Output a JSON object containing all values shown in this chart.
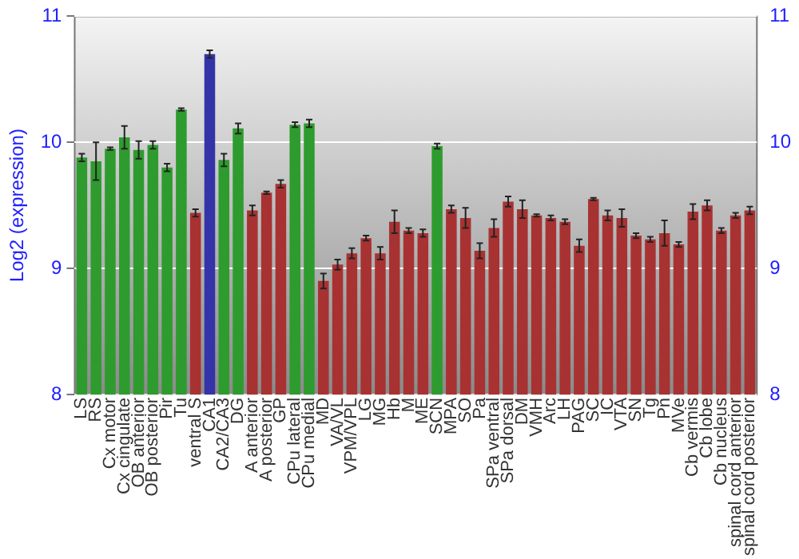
{
  "chart_data": {
    "type": "bar",
    "ylabel": "Log2 (expression)",
    "categories": [
      "LS",
      "RS",
      "Cx motor",
      "Cx cingulate",
      "OB anterior",
      "OB posterior",
      "Pir",
      "Tu",
      "ventral S",
      "CA1",
      "CA2/CA3",
      "DG",
      "A anterior",
      "A posterior",
      "GP",
      "CPu lateral",
      "CPu medial",
      "MD",
      "VA/VL",
      "VPM/VPL",
      "LG",
      "MG",
      "Hb",
      "M",
      "ME",
      "SCN",
      "MPA",
      "SO",
      "Pa",
      "SPa ventral",
      "SPa dorsal",
      "DM",
      "VMH",
      "Arc",
      "LH",
      "PAG",
      "SC",
      "IC",
      "VTA",
      "SN",
      "Tg",
      "Pn",
      "MVe",
      "Cb vermis",
      "Cb lobe",
      "Cb nucleus",
      "spinal cord anterior",
      "spinal cord posterior"
    ],
    "values": [
      9.88,
      9.85,
      9.95,
      10.04,
      9.94,
      9.98,
      9.8,
      10.26,
      9.44,
      10.7,
      9.86,
      10.11,
      9.46,
      9.6,
      9.67,
      10.14,
      10.15,
      8.9,
      9.03,
      9.12,
      9.24,
      9.12,
      9.37,
      9.3,
      9.28,
      9.97,
      9.47,
      9.4,
      9.14,
      9.32,
      9.53,
      9.47,
      9.42,
      9.4,
      9.37,
      9.18,
      9.55,
      9.42,
      9.4,
      9.26,
      9.23,
      9.28,
      9.19,
      9.45,
      9.5,
      9.3,
      9.42,
      9.46
    ],
    "errors": [
      0.03,
      0.15,
      0.01,
      0.09,
      0.07,
      0.03,
      0.03,
      0.01,
      0.03,
      0.03,
      0.05,
      0.04,
      0.04,
      0.01,
      0.03,
      0.02,
      0.03,
      0.06,
      0.04,
      0.04,
      0.02,
      0.05,
      0.09,
      0.02,
      0.03,
      0.02,
      0.03,
      0.08,
      0.06,
      0.07,
      0.04,
      0.07,
      0.01,
      0.02,
      0.02,
      0.05,
      0.01,
      0.04,
      0.07,
      0.02,
      0.02,
      0.1,
      0.02,
      0.06,
      0.04,
      0.02,
      0.02,
      0.03
    ],
    "colors": [
      "#2e9b2e",
      "#2e9b2e",
      "#2e9b2e",
      "#2e9b2e",
      "#2e9b2e",
      "#2e9b2e",
      "#2e9b2e",
      "#2e9b2e",
      "#a83232",
      "#3434a8",
      "#2e9b2e",
      "#2e9b2e",
      "#a83232",
      "#a83232",
      "#a83232",
      "#2e9b2e",
      "#2e9b2e",
      "#a83232",
      "#a83232",
      "#a83232",
      "#a83232",
      "#a83232",
      "#a83232",
      "#a83232",
      "#a83232",
      "#2e9b2e",
      "#a83232",
      "#a83232",
      "#a83232",
      "#a83232",
      "#a83232",
      "#a83232",
      "#a83232",
      "#a83232",
      "#a83232",
      "#a83232",
      "#a83232",
      "#a83232",
      "#a83232",
      "#a83232",
      "#a83232",
      "#a83232",
      "#a83232",
      "#a83232",
      "#a83232",
      "#a83232",
      "#a83232",
      "#a83232"
    ],
    "ylim": [
      8,
      11
    ],
    "yticks": [
      8,
      9,
      10,
      11
    ],
    "y2lim": [
      8,
      11
    ],
    "y2ticks": [
      8,
      9,
      10,
      11
    ],
    "grid": "y",
    "legend": false
  }
}
